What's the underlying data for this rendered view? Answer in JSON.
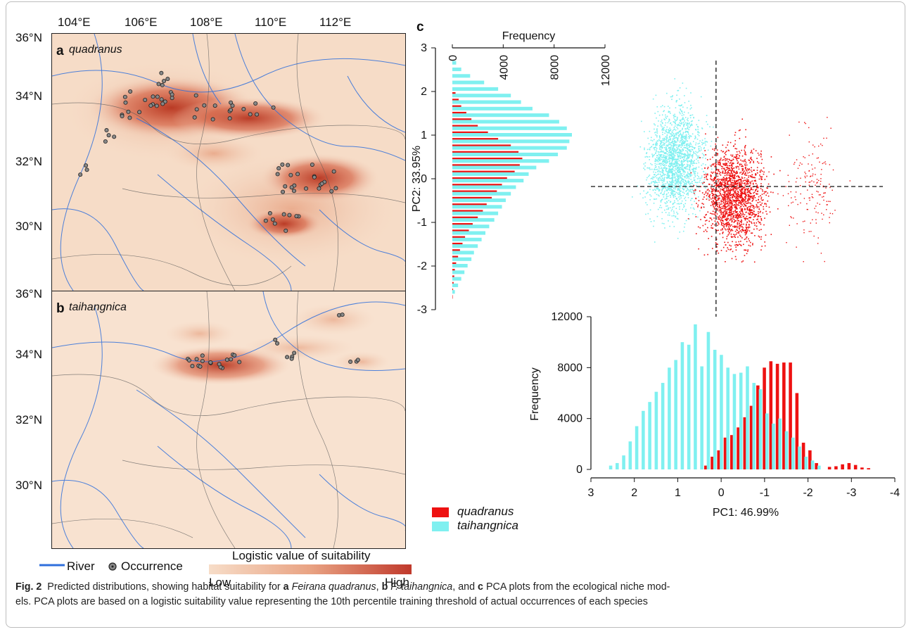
{
  "map": {
    "top_ticks": [
      "104°E",
      "106°E",
      "108°E",
      "110°E",
      "112°E"
    ],
    "lat_ticks_a": [
      "36°N",
      "34°N",
      "32°N",
      "30°N"
    ],
    "lat_ticks_b": [
      "36°N",
      "34°N",
      "32°N",
      "30°N"
    ],
    "panel_a": {
      "letter": "a",
      "species": "quadranus"
    },
    "panel_b": {
      "letter": "b",
      "species": "taihangnica"
    },
    "legend": {
      "river": "River",
      "occurrence": "Occurrence",
      "scale_title": "Logistic value of suitability",
      "low": "Low",
      "high": "High"
    },
    "colors": {
      "low": "#f7ddc8",
      "high": "#c0392b",
      "river": "#2f6fdc"
    }
  },
  "panel_c": {
    "letter": "c",
    "legend": [
      {
        "name": "quadranus",
        "color": "#ee1111"
      },
      {
        "name": "taihangnica",
        "color": "#7ff0f0"
      }
    ]
  },
  "chart_data": [
    {
      "type": "bar",
      "orientation": "horizontal",
      "xlabel": "Frequency",
      "ylabel": "PC2: 33.95%",
      "x_ticks": [
        "0",
        "4000",
        "8000",
        "12000"
      ],
      "y_ticks": [
        "3",
        "2",
        "1",
        "0",
        "-1",
        "-2",
        "-3"
      ],
      "xlim": [
        0,
        12000
      ],
      "ylim": [
        -3,
        3
      ],
      "bins_pc2": [
        2.6,
        2.45,
        2.3,
        2.15,
        2.0,
        1.85,
        1.7,
        1.55,
        1.4,
        1.25,
        1.1,
        0.95,
        0.8,
        0.65,
        0.5,
        0.35,
        0.2,
        0.05,
        -0.1,
        -0.25,
        -0.4,
        -0.55,
        -0.7,
        -0.85,
        -1.0,
        -1.15,
        -1.3,
        -1.45,
        -1.6,
        -1.75,
        -1.9,
        -2.05,
        -2.2,
        -2.35,
        -2.5,
        -2.65
      ],
      "series": [
        {
          "name": "quadranus",
          "values": [
            0,
            0,
            0,
            0,
            250,
            500,
            700,
            1100,
            1500,
            2000,
            2800,
            3600,
            4600,
            5200,
            5500,
            5300,
            4900,
            4300,
            3900,
            3500,
            3100,
            2700,
            2400,
            2000,
            1600,
            1300,
            1000,
            800,
            600,
            450,
            300,
            200,
            150,
            100,
            60,
            30
          ]
        },
        {
          "name": "taihangnica",
          "values": [
            300,
            700,
            1400,
            2500,
            3600,
            4600,
            5400,
            6300,
            7600,
            8400,
            9000,
            9400,
            9200,
            9000,
            8300,
            7600,
            6600,
            6000,
            5600,
            5000,
            4600,
            4200,
            3900,
            3600,
            3300,
            2900,
            2600,
            2300,
            2000,
            1700,
            1500,
            1200,
            950,
            700,
            450,
            200
          ]
        }
      ]
    },
    {
      "type": "scatter",
      "xlabel": "PC1: 46.99%",
      "ylabel": "PC2: 33.95%",
      "xlim": [
        3,
        -4
      ],
      "ylim": [
        -3,
        3
      ],
      "series": [
        {
          "name": "quadranus",
          "cluster_center": [
            -0.4,
            -0.2
          ]
        },
        {
          "name": "taihangnica",
          "cluster_center": [
            1.0,
            0.6
          ]
        }
      ]
    },
    {
      "type": "bar",
      "xlabel": "PC1: 46.99%",
      "ylabel": "Frequency",
      "x_ticks": [
        "3",
        "2",
        "1",
        "0",
        "-1",
        "-2",
        "-3",
        "-4"
      ],
      "y_ticks": [
        "12000",
        "8000",
        "4000",
        "0"
      ],
      "xlim": [
        3,
        -4
      ],
      "ylim": [
        0,
        12000
      ],
      "bins_pc1": [
        2.5,
        2.35,
        2.2,
        2.05,
        1.9,
        1.75,
        1.6,
        1.45,
        1.3,
        1.15,
        1.0,
        0.85,
        0.7,
        0.55,
        0.4,
        0.25,
        0.1,
        -0.05,
        -0.2,
        -0.35,
        -0.5,
        -0.65,
        -0.8,
        -0.95,
        -1.1,
        -1.25,
        -1.4,
        -1.55,
        -1.7,
        -1.85,
        -2.0,
        -2.15,
        -2.3,
        -2.45,
        -2.6,
        -2.75,
        -2.9,
        -3.05,
        -3.2,
        -3.35
      ],
      "series": [
        {
          "name": "quadranus",
          "values": [
            0,
            0,
            0,
            0,
            0,
            0,
            0,
            0,
            0,
            0,
            0,
            0,
            0,
            0,
            300,
            1000,
            1500,
            2500,
            2700,
            3300,
            4100,
            5000,
            6600,
            8000,
            8500,
            8300,
            8400,
            8400,
            6000,
            2100,
            1500,
            500,
            0,
            200,
            250,
            400,
            500,
            350,
            150,
            100
          ]
        },
        {
          "name": "taihangnica",
          "values": [
            300,
            500,
            1100,
            2200,
            3400,
            4600,
            5300,
            6100,
            6800,
            8000,
            8600,
            10000,
            9800,
            11400,
            8100,
            10800,
            9400,
            9000,
            8000,
            7500,
            7600,
            8100,
            6800,
            6300,
            4400,
            3600,
            4000,
            3000,
            2500,
            1800,
            1000,
            700,
            300,
            0,
            0,
            0,
            0,
            0,
            0,
            0
          ]
        }
      ]
    }
  ],
  "caption": {
    "fig": "Fig. 2",
    "t1": "Predicted distributions, showing habitat suitability for ",
    "a": "a",
    "sp_a": "Feirana quadranus",
    "sep1": ", ",
    "b": "b",
    "sp_b": "F. taihangnica",
    "t2": ", and ",
    "c": "c",
    "t3": " PCA plots from the ecological niche mod-",
    "line2": "els. PCA plots are based on a logistic suitability value representing the 10th percentile training threshold of actual occurrences of each species"
  }
}
